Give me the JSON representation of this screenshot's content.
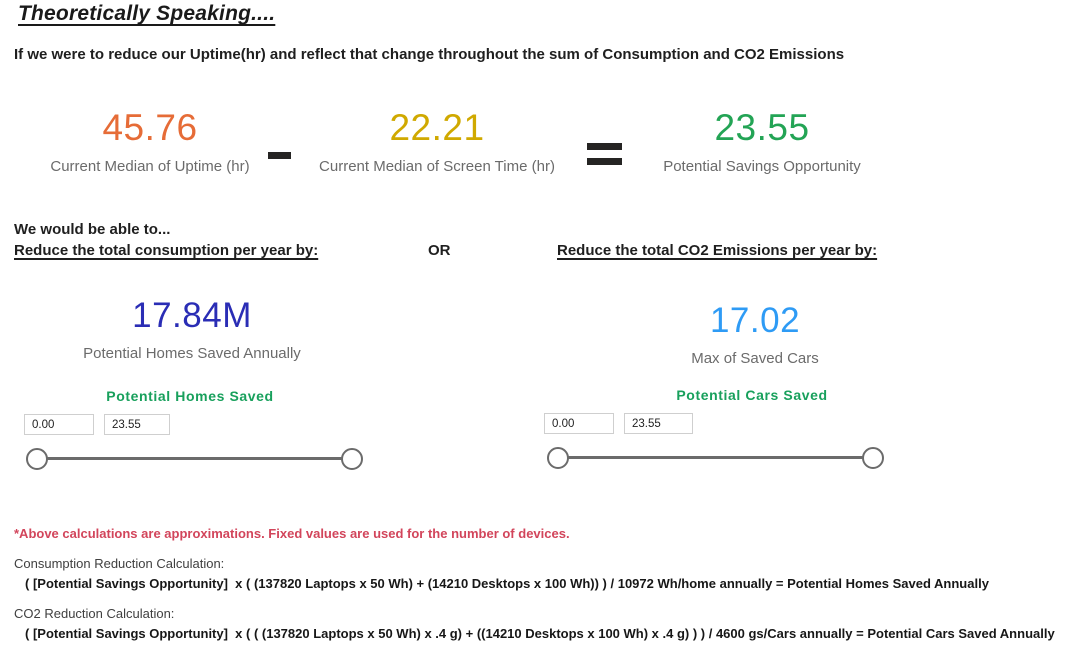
{
  "page": {
    "title": "Theoretically Speaking....",
    "subtitle": "If we were to reduce our Uptime(hr) and reflect that change throughout the sum of Consumption and CO2 Emissions"
  },
  "equation": {
    "minuend": {
      "value": "45.76",
      "label": "Current Median of Uptime (hr)",
      "color": "#E66C37"
    },
    "subtrahend": {
      "value": "22.21",
      "label": "Current Median of Screen Time (hr)",
      "color": "#D0A900"
    },
    "result": {
      "value": "23.55",
      "label": "Potential Savings Opportunity",
      "color": "#23A455"
    }
  },
  "icons": {
    "minus": "minus-icon",
    "equals": "equals-icon"
  },
  "options": {
    "intro": "We would be able to...",
    "consumption_heading": "Reduce the total consumption per year by:",
    "or_label": "OR",
    "co2_heading": "Reduce the total CO2 Emissions per year by:"
  },
  "consumption": {
    "kpi_value": "17.84M",
    "kpi_label": "Potential Homes Saved Annually",
    "kpi_color": "#2A2DB5",
    "slider_title": "Potential Homes Saved",
    "slider_title_color": "#18A05C",
    "slider_min_value": "0.00",
    "slider_max_value": "23.55"
  },
  "co2": {
    "kpi_value": "17.02",
    "kpi_label": "Max of Saved Cars",
    "kpi_color": "#2E9BF5",
    "slider_title": "Potential Cars Saved",
    "slider_title_color": "#18A05C",
    "slider_min_value": "0.00",
    "slider_max_value": "23.55"
  },
  "footnotes": {
    "disclaimer": "*Above calculations are approximations. Fixed values are used for the number of devices.",
    "disclaimer_color": "#D2455B",
    "consumption_calc_label": "Consumption Reduction Calculation:",
    "consumption_calc_formula": "( [Potential Savings Opportunity]  x ( (137820 Laptops x 50 Wh) + (14210 Desktops x 100 Wh)) ) / 10972 Wh/home annually = Potential Homes Saved Annually",
    "co2_calc_label": "CO2 Reduction Calculation:",
    "co2_calc_formula": "( [Potential Savings Opportunity]  x ( ( (137820 Laptops x 50 Wh) x .4 g) + ((14210 Desktops x 100 Wh) x .4 g) ) ) / 4600 gs/Cars annually = Potential Cars Saved Annually"
  }
}
